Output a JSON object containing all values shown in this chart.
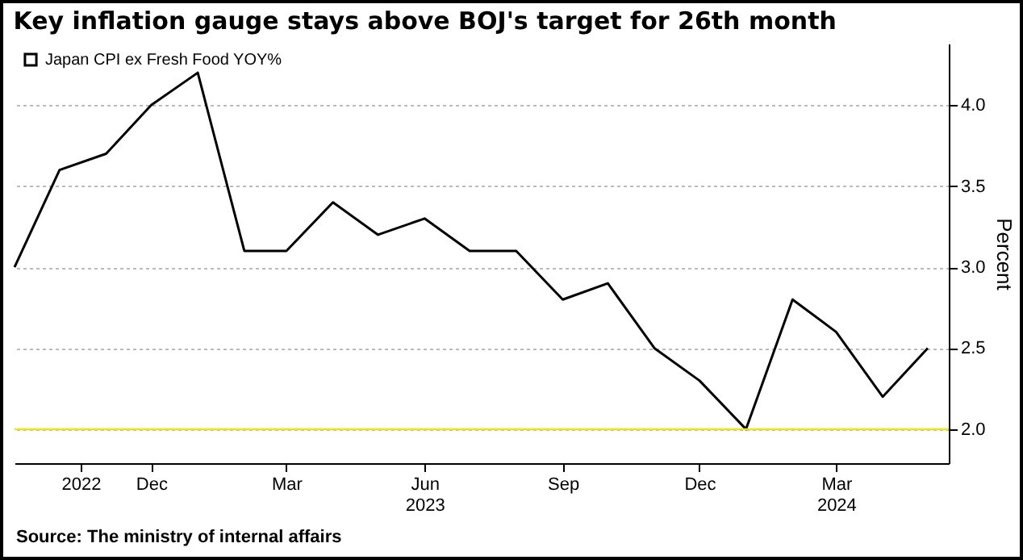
{
  "chart_data": {
    "type": "line",
    "title": "Key inflation gauge stays above BOJ's target for 26th month",
    "ylabel": "Percent",
    "annotations": [
      "Source: The ministry of internal affairs"
    ],
    "x": [
      "2022-09",
      "2022-10",
      "2022-11",
      "2022-12",
      "2023-01",
      "2023-02",
      "2023-03",
      "2023-04",
      "2023-05",
      "2023-06",
      "2023-07",
      "2023-08",
      "2023-09",
      "2023-10",
      "2023-11",
      "2023-12",
      "2024-01",
      "2024-02",
      "2024-03",
      "2024-04",
      "2024-05"
    ],
    "series": [
      {
        "name": "Japan CPI ex Fresh Food YOY%",
        "color": "#000000",
        "values": [
          3.0,
          3.6,
          3.7,
          4.0,
          4.2,
          3.1,
          3.1,
          3.4,
          3.2,
          3.3,
          3.1,
          3.1,
          2.8,
          2.9,
          2.5,
          2.3,
          2.0,
          2.8,
          2.6,
          2.2,
          2.5
        ]
      }
    ],
    "xlim": [
      "2022-09",
      "2024-05-15"
    ],
    "xticks": [
      {
        "value": "2022-10-15",
        "label": "2022"
      },
      {
        "value": "2022-12",
        "label": "Dec"
      },
      {
        "value": "2023-03",
        "label": "Mar"
      },
      {
        "value": "2023-06",
        "label": "Jun\n2023"
      },
      {
        "value": "2023-09",
        "label": "Sep"
      },
      {
        "value": "2023-12",
        "label": "Dec"
      },
      {
        "value": "2024-03",
        "label": "Mar\n2024"
      }
    ],
    "ylim": [
      1.79,
      4.38
    ],
    "yticks": [
      {
        "value": 2,
        "label": "2.0"
      },
      {
        "value": 2.5,
        "label": "2.5"
      },
      {
        "value": 3,
        "label": "3.0"
      },
      {
        "value": 3.5,
        "label": "3.5"
      },
      {
        "value": 4,
        "label": "4.0"
      }
    ],
    "ref_lines": [
      {
        "axis": "y",
        "value": 2,
        "label": null,
        "color": "#f2e600"
      }
    ],
    "grid": "y",
    "legend": "top left",
    "marker": "none",
    "line_style": "solid"
  }
}
